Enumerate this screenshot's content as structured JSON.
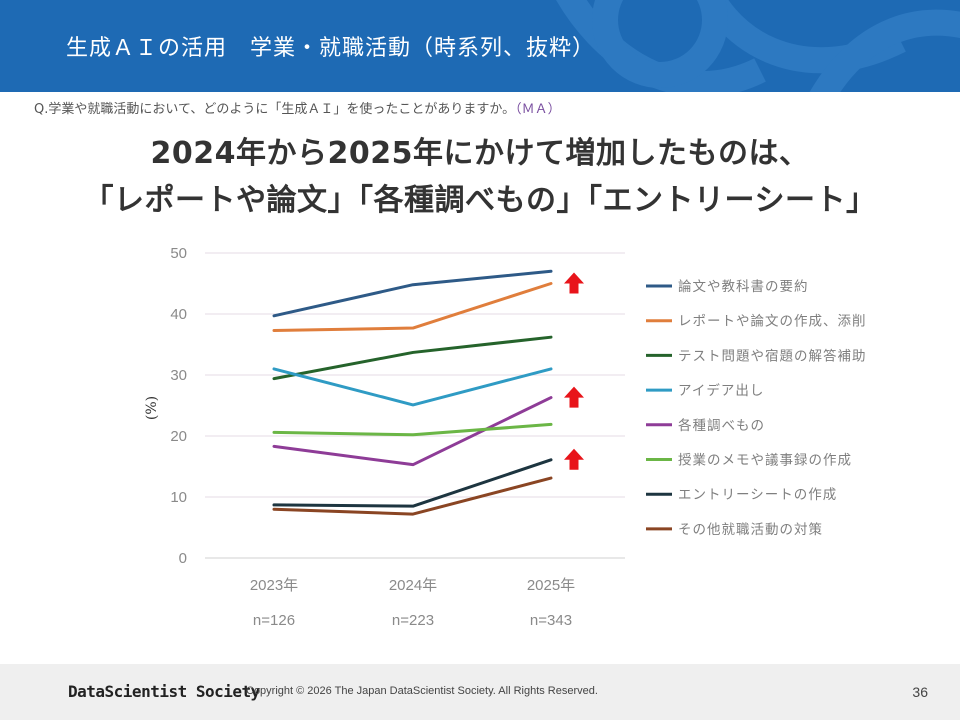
{
  "header": {
    "title": "生成ＡＩの活用　学業・就職活動（時系列、抜粋）"
  },
  "question": {
    "text": "Q.学業や就職活動において、どのように「生成ＡＩ」を使ったことがありますか。",
    "suffix": "（ＭＡ）"
  },
  "headline": {
    "line1": "2024年から2025年にかけて増加したものは、",
    "line2": "「レポートや論文」「各種調べもの」「エントリーシート」"
  },
  "chart_data": {
    "type": "line",
    "x": [
      "2023年",
      "2024年",
      "2025年"
    ],
    "sample_sizes": [
      "n=126",
      "n=223",
      "n=343"
    ],
    "ylabel": "(%)",
    "ylim": [
      0,
      50
    ],
    "yticks": [
      0,
      10,
      20,
      30,
      40,
      50
    ],
    "grid": true,
    "legend_position": "right",
    "series": [
      {
        "name": "論文や教科書の要約",
        "color": "#2e5a87",
        "values": [
          39.7,
          44.8,
          47.0
        ]
      },
      {
        "name": "レポートや論文の作成、添削",
        "color": "#e07e3c",
        "values": [
          37.3,
          37.7,
          45.0
        ]
      },
      {
        "name": "テスト問題や宿題の解答補助",
        "color": "#25632b",
        "values": [
          29.4,
          33.7,
          36.2
        ]
      },
      {
        "name": "アイデア出し",
        "color": "#2f9bc4",
        "values": [
          31.0,
          25.1,
          31.0
        ]
      },
      {
        "name": "各種調べもの",
        "color": "#8e3c97",
        "values": [
          18.3,
          15.3,
          26.3
        ]
      },
      {
        "name": "授業のメモや議事録の作成",
        "color": "#6bb646",
        "values": [
          20.6,
          20.2,
          21.9
        ]
      },
      {
        "name": "エントリーシートの作成",
        "color": "#1d3540",
        "values": [
          8.7,
          8.5,
          16.1
        ]
      },
      {
        "name": "その他就職活動の対策",
        "color": "#8a4523",
        "values": [
          8.0,
          7.2,
          13.1
        ]
      }
    ],
    "highlighted_increases": [
      "レポートや論文の作成、添削",
      "各種調べもの",
      "エントリーシートの作成"
    ],
    "arrow_color": "#e8141a"
  },
  "footer": {
    "brand": "DataScientist Society",
    "copyright": "Copyright © 2026  The Japan DataScientist Society. All Rights Reserved.",
    "page": "36"
  },
  "colors": {
    "header_bg": "#1e6ab4",
    "footer_bg": "#efefef"
  }
}
